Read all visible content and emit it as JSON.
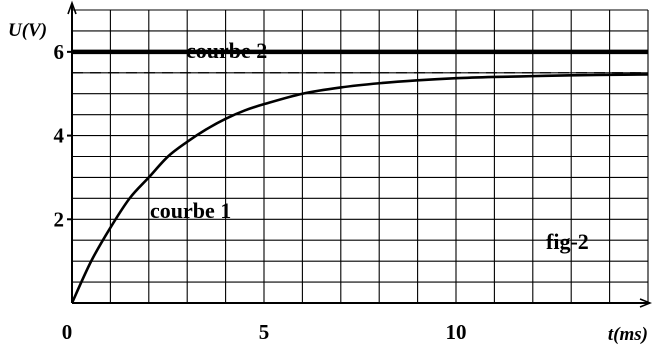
{
  "chart_data": {
    "type": "line",
    "title": "",
    "xlabel": "t(ms)",
    "ylabel": "U(V)",
    "xlim": [
      0,
      15
    ],
    "ylim": [
      0,
      7
    ],
    "grid": true,
    "x_ticks": [
      {
        "value": 0,
        "label": "0"
      },
      {
        "value": 5,
        "label": "5"
      },
      {
        "value": 10,
        "label": "10"
      }
    ],
    "y_ticks": [
      {
        "value": 2,
        "label": "2"
      },
      {
        "value": 4,
        "label": "4"
      },
      {
        "value": 6,
        "label": "6"
      }
    ],
    "series": [
      {
        "name": "courbe 1",
        "x": [
          0,
          0.5,
          1,
          1.5,
          2,
          2.5,
          3,
          3.5,
          4,
          4.5,
          5,
          6,
          7,
          8,
          9,
          10,
          11,
          12,
          13,
          14,
          15
        ],
        "y": [
          0,
          1.0,
          1.8,
          2.5,
          3.0,
          3.5,
          3.85,
          4.15,
          4.4,
          4.6,
          4.75,
          5.0,
          5.15,
          5.25,
          5.32,
          5.37,
          5.4,
          5.42,
          5.44,
          5.45,
          5.46
        ]
      },
      {
        "name": "courbe 2",
        "x": [
          0,
          15
        ],
        "y": [
          6,
          6
        ]
      }
    ],
    "reference_lines": [
      {
        "axis": "y",
        "value": 5.5,
        "style": "dashed"
      }
    ],
    "annotations": [
      "fig-2"
    ]
  }
}
